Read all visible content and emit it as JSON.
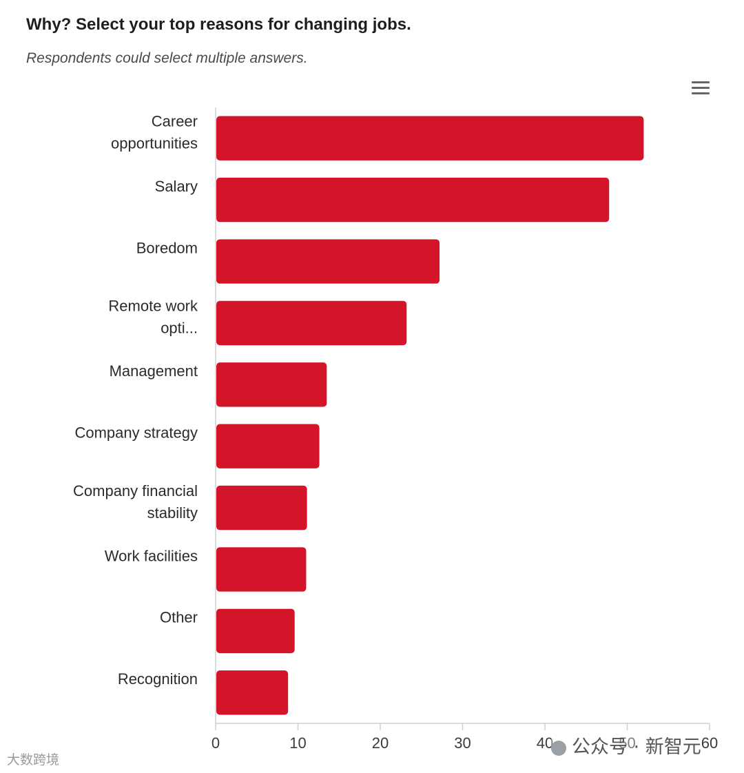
{
  "title": "Why? Select your top reasons for changing jobs.",
  "subtitle": "Respondents could select multiple answers.",
  "menu": {
    "icon": "hamburger-menu-icon"
  },
  "watermarks": {
    "left": "大数跨境",
    "right": "公众号 · 新智元"
  },
  "chart_data": {
    "type": "bar",
    "orientation": "horizontal",
    "categories": [
      "Career opportunities",
      "Salary",
      "Boredom",
      "Remote work opti...",
      "Management",
      "Company strategy",
      "Company financial stability",
      "Work facilities",
      "Other",
      "Recognition"
    ],
    "values": [
      52,
      47.8,
      27.2,
      23.2,
      13.5,
      12.6,
      11.1,
      11.0,
      9.6,
      8.8
    ],
    "xlim": [
      0,
      60
    ],
    "xticks": [
      0,
      10,
      20,
      30,
      40,
      50,
      60
    ],
    "bar_color": "#d41428",
    "grid": false,
    "legend": false
  }
}
